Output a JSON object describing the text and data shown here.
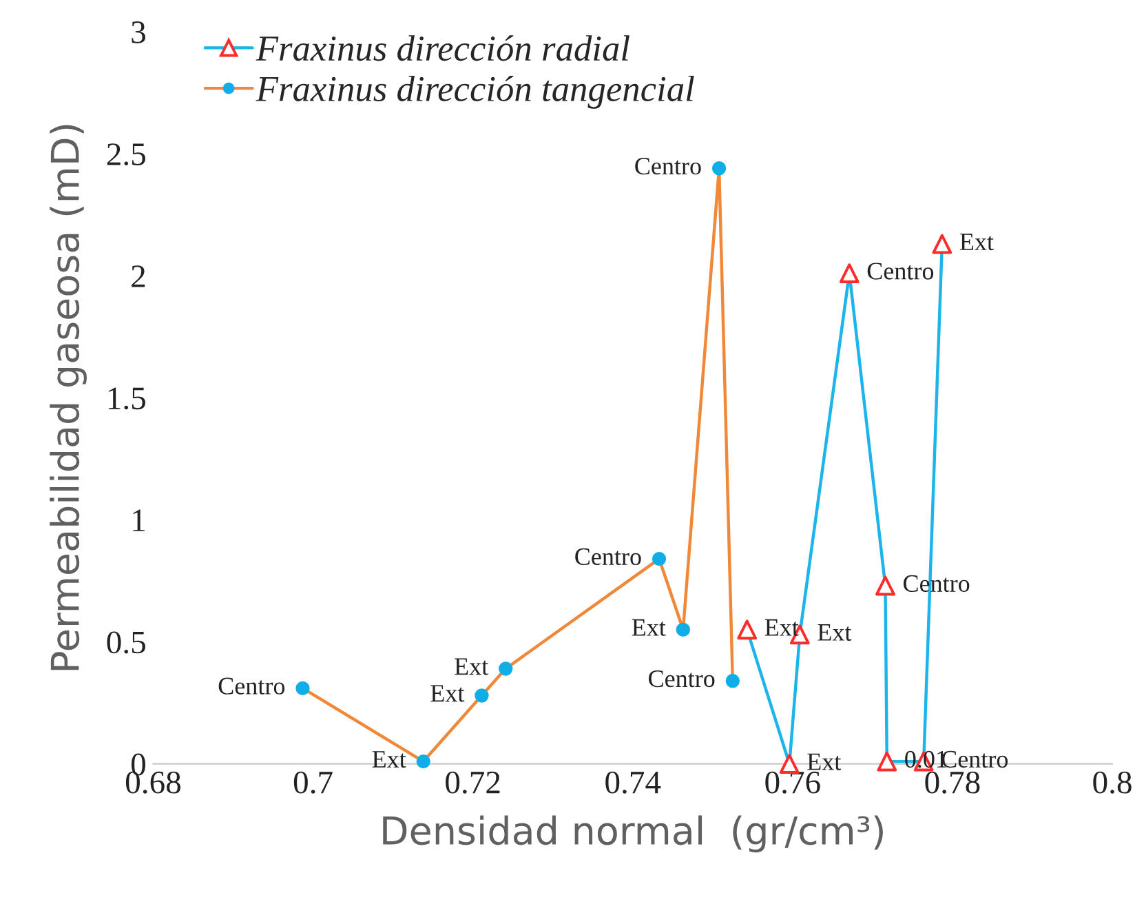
{
  "chart_data": {
    "type": "line",
    "xlabel": "Densidad normal  (gr/cm³)",
    "ylabel": "Permeabilidad gaseosa (mD)",
    "xlim": [
      0.68,
      0.8
    ],
    "xticks": [
      0.68,
      {
        "value": 0.7,
        "label": "0.7"
      },
      0.72,
      0.74,
      0.76,
      0.78,
      {
        "value": 0.8,
        "label": "0.8"
      }
    ],
    "ylim": [
      0,
      3
    ],
    "yticks": [
      0,
      0.5,
      1,
      1.5,
      2,
      2.5,
      3
    ],
    "grid": false,
    "legend": "top left",
    "series": [
      {
        "name": "Fraxinus dirección radial",
        "color": "#1cb4ea",
        "marker": "triangle",
        "colors": [
          "#ff2a2a",
          "#ff2a2a",
          "#ff2a2a",
          "#ff2a2a",
          "#ff2a2a",
          "#ff2a2a",
          "#ff2a2a",
          "#ff2a2a"
        ],
        "x": [
          0.7543,
          0.7596,
          0.7609,
          0.7671,
          0.7716,
          0.7718,
          0.7764,
          0.7787
        ],
        "values": [
          0.55,
          0.0,
          0.53,
          2.01,
          0.73,
          0.01,
          0.01,
          2.13
        ]
      },
      {
        "name": "Fraxinus dirección tangencial",
        "color": "#f0883a",
        "marker": "circle",
        "colors": [
          "#10aee8",
          "#10aee8",
          "#10aee8",
          "#10aee8",
          "#10aee8",
          "#10aee8",
          "#10aee8",
          "#10aee8"
        ],
        "x": [
          0.6987,
          0.7138,
          0.7211,
          0.7241,
          0.7433,
          0.7463,
          0.7508,
          0.7525
        ],
        "values": [
          0.31,
          0.01,
          0.28,
          0.39,
          0.84,
          0.55,
          2.44,
          0.34
        ]
      }
    ],
    "annotations": [
      {
        "text": "Ext",
        "x": 0.7543,
        "y": 0.55
      },
      {
        "text": "Ext",
        "x": 0.7596,
        "y": 0.0
      },
      {
        "text": "Ext",
        "x": 0.7609,
        "y": 0.53
      },
      {
        "text": "Centro",
        "x": 0.7671,
        "y": 2.01
      },
      {
        "text": "Centro",
        "x": 0.7716,
        "y": 0.73
      },
      {
        "text": "0.01",
        "x": 0.7718,
        "y": 0.01
      },
      {
        "text": "Centro",
        "x": 0.7764,
        "y": 0.01
      },
      {
        "text": "Ext",
        "x": 0.7787,
        "y": 2.13
      },
      {
        "text": "Centro",
        "x": 0.6987,
        "y": 0.31
      },
      {
        "text": "Ext",
        "x": 0.7138,
        "y": 0.01
      },
      {
        "text": "Ext",
        "x": 0.7211,
        "y": 0.28
      },
      {
        "text": "Ext",
        "x": 0.7241,
        "y": 0.39
      },
      {
        "text": "Centro",
        "x": 0.7433,
        "y": 0.84
      },
      {
        "text": "Ext",
        "x": 0.7463,
        "y": 0.55
      },
      {
        "text": "Centro",
        "x": 0.7508,
        "y": 2.44
      },
      {
        "text": "Centro",
        "x": 0.7525,
        "y": 0.34
      }
    ]
  }
}
